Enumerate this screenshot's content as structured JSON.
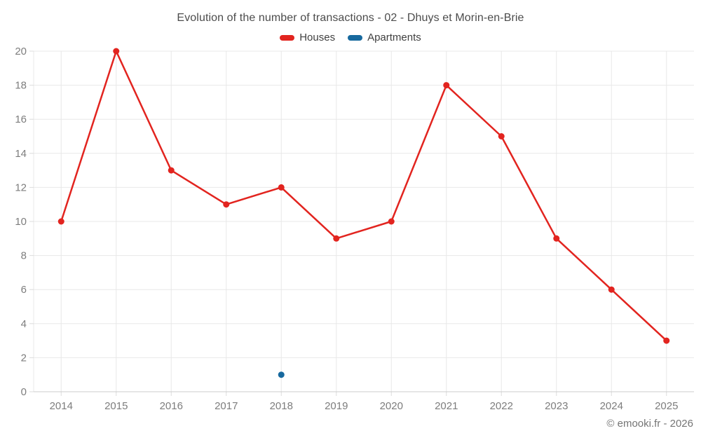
{
  "title": "Evolution of the number of transactions - 02 - Dhuys et Morin-en-Brie",
  "legend": {
    "items": [
      {
        "label": "Houses",
        "color": "#e2241f"
      },
      {
        "label": "Apartments",
        "color": "#17699e"
      }
    ]
  },
  "footer": {
    "copyright": "© emooki.fr - 2026"
  },
  "colors": {
    "grid": "#e8e8e8",
    "axis_line": "#cccccc",
    "tick": "#dcdcdc",
    "axis_text": "#7d7d7d",
    "title_text": "#4c4c4c",
    "footer_text": "#757575"
  },
  "chart_data": {
    "type": "line",
    "title": "Evolution of the number of transactions - 02 - Dhuys et Morin-en-Brie",
    "categories": [
      "2014",
      "2015",
      "2016",
      "2017",
      "2018",
      "2019",
      "2020",
      "2021",
      "2022",
      "2023",
      "2024",
      "2025"
    ],
    "series": [
      {
        "name": "Houses",
        "color": "#e2241f",
        "values": [
          10,
          20,
          13,
          11,
          12,
          9,
          10,
          18,
          15,
          9,
          6,
          3
        ]
      },
      {
        "name": "Apartments",
        "color": "#17699e",
        "values": [
          null,
          null,
          null,
          null,
          1,
          null,
          null,
          null,
          null,
          null,
          null,
          null
        ]
      }
    ],
    "xlabel": "",
    "ylabel": "",
    "ylim": [
      0,
      20
    ],
    "ytick_step": 2,
    "grid": true,
    "legend_position": "top"
  }
}
